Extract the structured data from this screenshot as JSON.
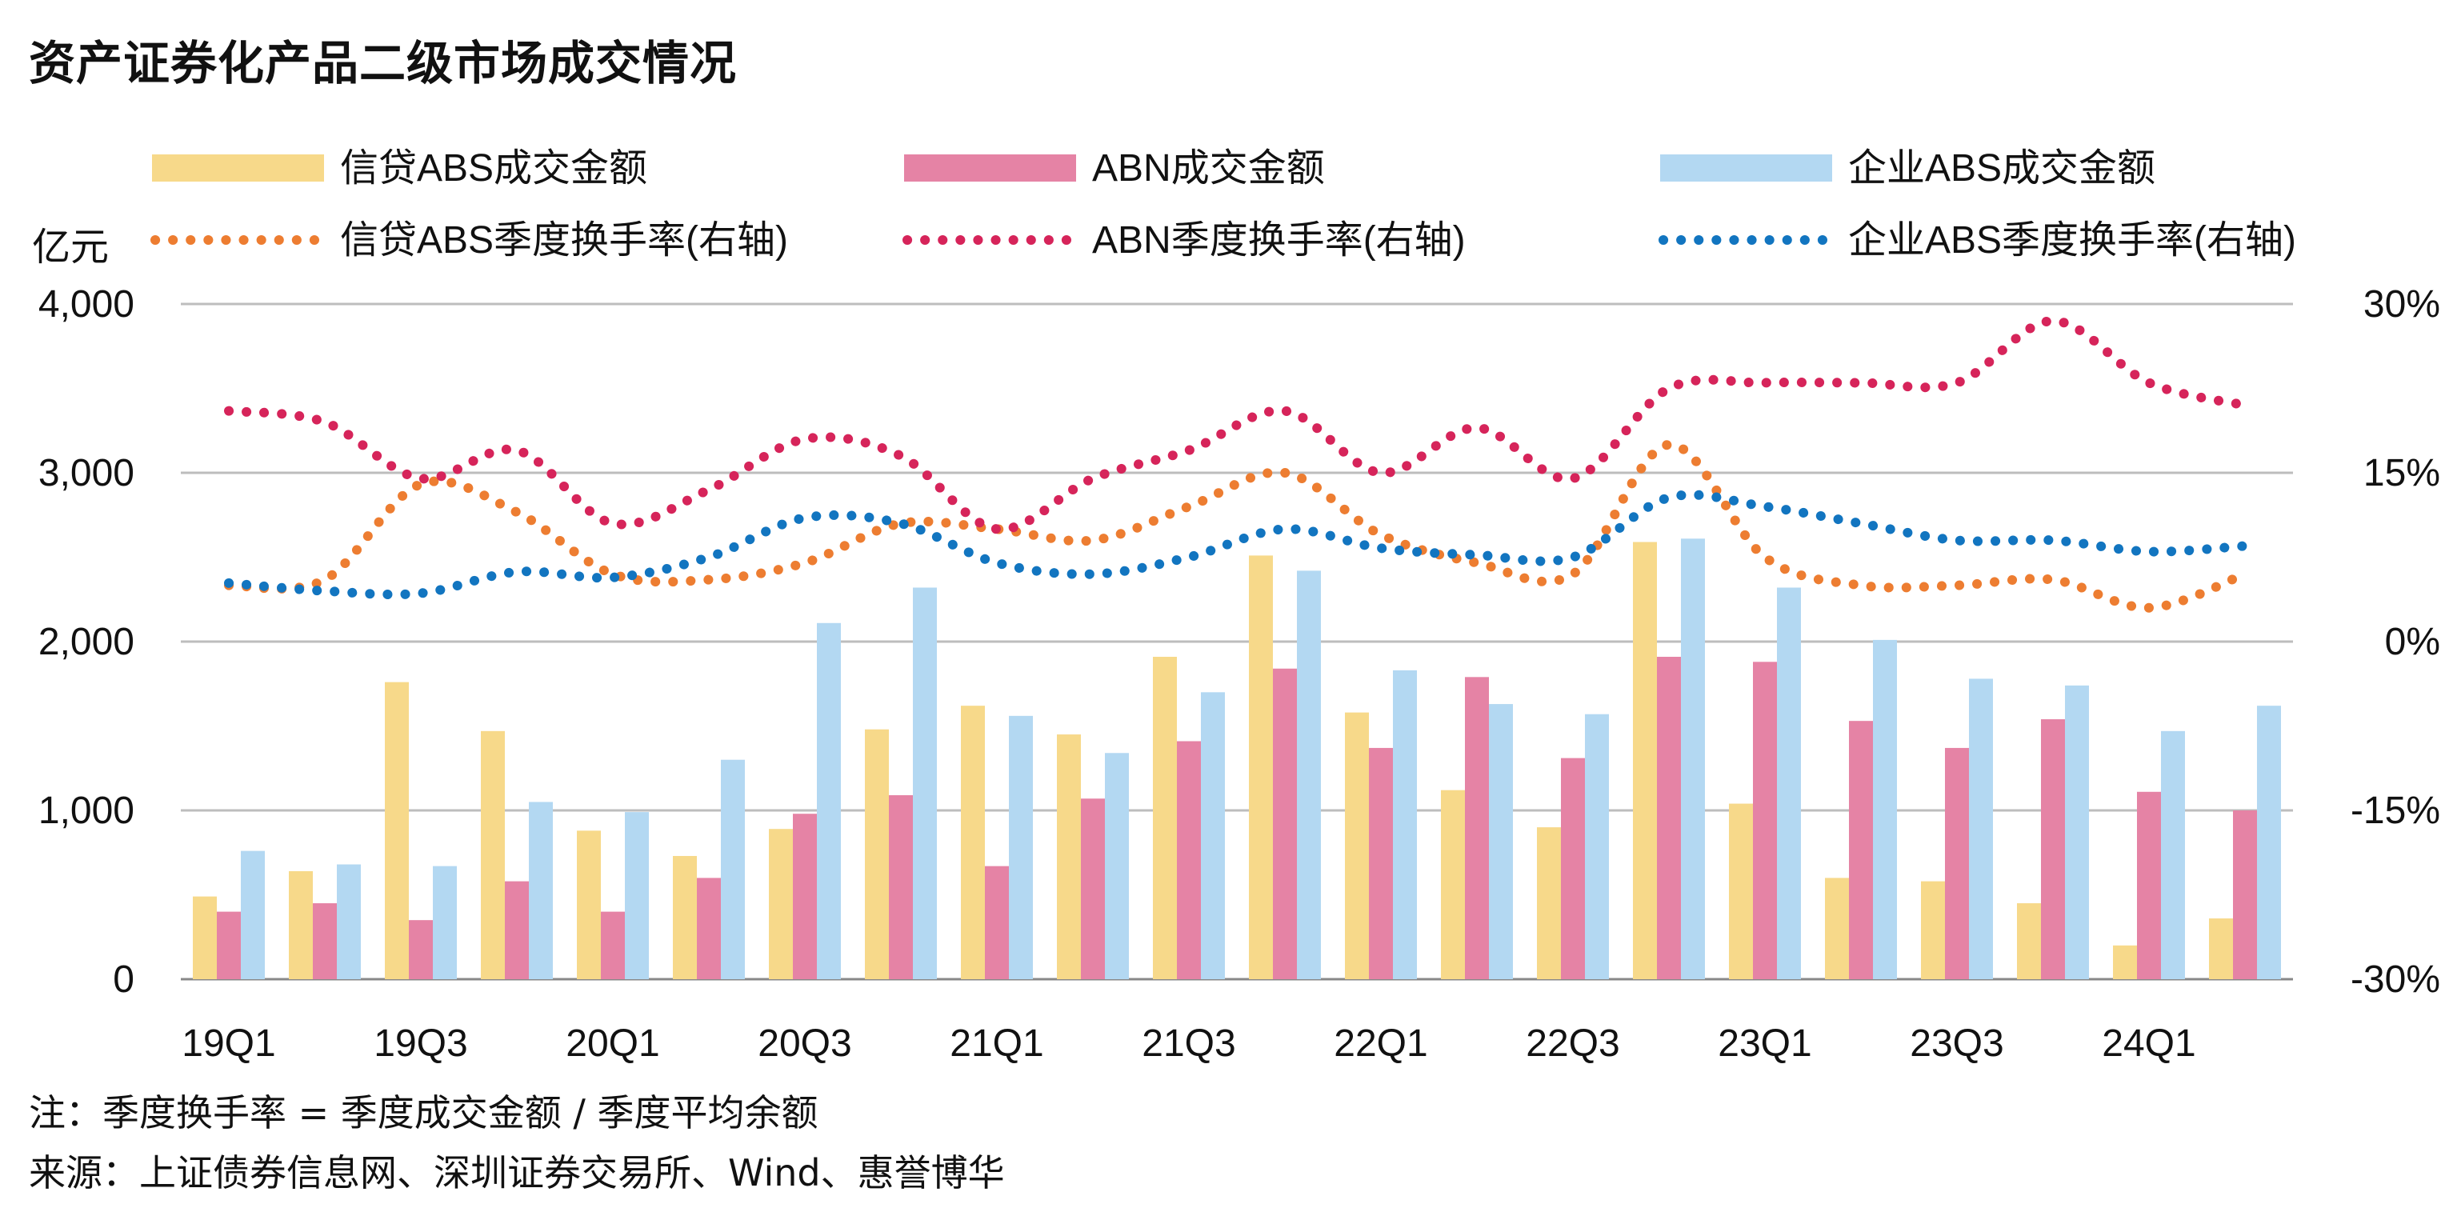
{
  "page": {
    "title": "资产证券化产品二级市场成交情况",
    "note": "注：季度换手率 = 季度成交金额 / 季度平均余额",
    "source": "来源：上证债券信息网、深圳证券交易所、Wind、惠誉博华"
  },
  "chart_data": {
    "type": "bar+line",
    "title": "资产证券化产品二级市场成交情况",
    "y_left_label": "亿元",
    "y_left_lim": [
      0,
      4000
    ],
    "y_left_ticks": [
      "0",
      "1,000",
      "2,000",
      "3,000",
      "4,000"
    ],
    "y_left_tick_values": [
      0,
      1000,
      2000,
      3000,
      4000
    ],
    "y_right_lim": [
      -30,
      30
    ],
    "y_right_ticks": [
      "-30%",
      "-15%",
      "0%",
      "15%",
      "30%"
    ],
    "y_right_tick_values": [
      -30,
      -15,
      0,
      15,
      30
    ],
    "categories": [
      "19Q1",
      "19Q2",
      "19Q3",
      "19Q4",
      "20Q1",
      "20Q2",
      "20Q3",
      "20Q4",
      "21Q1",
      "21Q2",
      "21Q3",
      "21Q4",
      "22Q1",
      "22Q2",
      "22Q3",
      "22Q4",
      "23Q1",
      "23Q2",
      "23Q3",
      "23Q4",
      "24Q1",
      "24Q2"
    ],
    "x_tick_labels": [
      "19Q1",
      "",
      "19Q3",
      "",
      "20Q1",
      "",
      "20Q3",
      "",
      "21Q1",
      "",
      "21Q3",
      "",
      "22Q1",
      "",
      "22Q3",
      "",
      "23Q1",
      "",
      "23Q3",
      "",
      "24Q1",
      ""
    ],
    "bar_series": [
      {
        "name": "信贷ABS成交金额",
        "color": "#F7D98A",
        "values": [
          490,
          640,
          1760,
          1470,
          880,
          730,
          890,
          1480,
          1620,
          1450,
          1910,
          2510,
          1580,
          1120,
          900,
          2590,
          1040,
          600,
          580,
          450,
          200,
          360
        ]
      },
      {
        "name": "ABN成交金额",
        "color": "#E583A5",
        "values": [
          400,
          450,
          350,
          580,
          400,
          600,
          980,
          1090,
          670,
          1070,
          1410,
          1840,
          1370,
          1790,
          1310,
          1910,
          1880,
          1530,
          1370,
          1540,
          1110,
          1000
        ]
      },
      {
        "name": "企业ABS成交金额",
        "color": "#B3D8F2",
        "values": [
          760,
          680,
          670,
          1050,
          990,
          1300,
          2110,
          2320,
          1560,
          1340,
          1700,
          2420,
          1830,
          1630,
          1570,
          2610,
          2320,
          2010,
          1780,
          1740,
          1470,
          1620
        ]
      }
    ],
    "line_series": [
      {
        "name": "信贷ABS季度换手率(右轴)",
        "color": "#ED7D31",
        "values": [
          5,
          5.5,
          14,
          11.5,
          6,
          5.5,
          7,
          10.5,
          10,
          9,
          12,
          15,
          9.5,
          7,
          6,
          17.5,
          7.5,
          5,
          5,
          5.5,
          3,
          6
        ]
      },
      {
        "name": "ABN季度换手率(右轴)",
        "color": "#D6245A",
        "values": [
          20.5,
          19.5,
          14.5,
          17,
          10.5,
          13.5,
          18,
          16.5,
          10,
          14.5,
          17,
          20.5,
          15,
          19,
          14.5,
          22.5,
          23,
          23,
          23,
          28.5,
          23,
          21
        ]
      },
      {
        "name": "企业ABS季度换手率(右轴)",
        "color": "#1275C0",
        "values": [
          5.2,
          4.5,
          4.3,
          6.2,
          5.7,
          7.5,
          11,
          10.5,
          7,
          6,
          7.5,
          10,
          8.3,
          7.7,
          7.5,
          12.8,
          12,
          10.5,
          9,
          9,
          8,
          8.5
        ]
      }
    ]
  }
}
